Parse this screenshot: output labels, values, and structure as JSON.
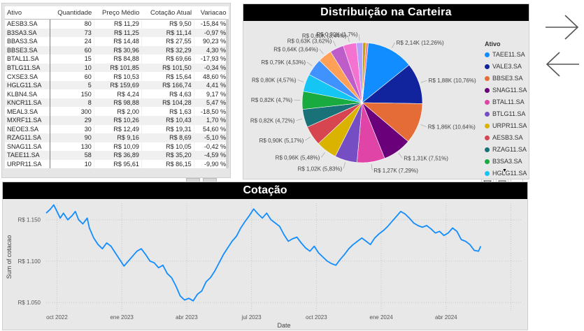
{
  "table": {
    "headers": [
      "Ativo",
      "Quantidade",
      "Preço Médio",
      "Cotação Atual",
      "Variacao"
    ],
    "rows": [
      [
        "AESB3.SA",
        "80",
        "R$ 11,29",
        "R$ 9,50",
        "-15,84 %"
      ],
      [
        "B3SA3.SA",
        "73",
        "R$ 11,25",
        "R$ 11,14",
        "-0,97 %"
      ],
      [
        "BBAS3.SA",
        "24",
        "R$ 14,48",
        "R$ 27,55",
        "90,23 %"
      ],
      [
        "BBSE3.SA",
        "60",
        "R$ 30,96",
        "R$ 32,29",
        "4,30 %"
      ],
      [
        "BTAL11.SA",
        "15",
        "R$ 84,88",
        "R$ 69,66",
        "-17,93 %"
      ],
      [
        "BTLG11.SA",
        "10",
        "R$ 101,85",
        "R$ 101,50",
        "-0,34 %"
      ],
      [
        "CXSE3.SA",
        "60",
        "R$ 10,53",
        "R$ 15,64",
        "48,60 %"
      ],
      [
        "HGLG11.SA",
        "5",
        "R$ 159,69",
        "R$ 166,74",
        "4,41 %"
      ],
      [
        "KLBN4.SA",
        "150",
        "R$ 4,24",
        "R$ 4,63",
        "9,17 %"
      ],
      [
        "KNCR11.SA",
        "8",
        "R$ 98,88",
        "R$ 104,28",
        "5,47 %"
      ],
      [
        "MEAL3.SA",
        "300",
        "R$ 2,00",
        "R$ 1,63",
        "-18,50 %"
      ],
      [
        "MXRF11.SA",
        "29",
        "R$ 10,26",
        "R$ 10,43",
        "1,70 %"
      ],
      [
        "NEOE3.SA",
        "30",
        "R$ 12,49",
        "R$ 19,31",
        "54,60 %"
      ],
      [
        "RZAG11.SA",
        "90",
        "R$ 9,16",
        "R$ 8,69",
        "-5,10 %"
      ],
      [
        "SNAG11.SA",
        "130",
        "R$ 10,09",
        "R$ 10,05",
        "-0,42 %"
      ],
      [
        "TAEE11.SA",
        "58",
        "R$ 36,89",
        "R$ 35,20",
        "-4,59 %"
      ],
      [
        "URPR11.SA",
        "10",
        "R$ 95,61",
        "R$ 86,15",
        "-9,90 %"
      ]
    ]
  },
  "pie": {
    "title": "Distribuição na Carteira",
    "legend_title": "Ativo",
    "legend_more": "▼",
    "chart_data": {
      "type": "pie",
      "slices": [
        {
          "name": "TAEE11.SA",
          "label": "R$ 2,14K (12,26%)",
          "pct": 12.26,
          "color": "#118DFF"
        },
        {
          "name": "VALE3.SA",
          "label": "R$ 1,88K (10,76%)",
          "pct": 10.76,
          "color": "#12239E"
        },
        {
          "name": "BBSE3.SA",
          "label": "R$ 1,86K (10,64%)",
          "pct": 10.64,
          "color": "#E66C37"
        },
        {
          "name": "SNAG11.SA",
          "label": "R$ 1,31K (7,51%)",
          "pct": 7.51,
          "color": "#6B007B"
        },
        {
          "name": "BTAL11.SA",
          "label": "R$ 1,27K (7,29%)",
          "pct": 7.29,
          "color": "#E044A7"
        },
        {
          "name": "BTLG11.SA",
          "label": "R$ 1,02K (5,83%)",
          "pct": 5.83,
          "color": "#744EC2"
        },
        {
          "name": "URPR11.SA",
          "label": "R$ 0,96K (5,48%)",
          "pct": 5.48,
          "color": "#D9B300"
        },
        {
          "name": "AESB3.SA",
          "label": "R$ 0,90K (5,17%)",
          "pct": 5.17,
          "color": "#D64550"
        },
        {
          "name": "RZAG11.SA",
          "label": "R$ 0,82K (4,72%)",
          "pct": 4.72,
          "color": "#197278"
        },
        {
          "name": "B3SA3.SA",
          "label": "R$ 0,82K (4,7%)",
          "pct": 4.7,
          "color": "#1AAB40"
        },
        {
          "name": "HGLG11.SA",
          "label": "R$ 0,80K (4,57%)",
          "pct": 4.57,
          "color": "#15C6F4"
        },
        {
          "name": "",
          "label": "R$ 0,79K (4,53%)",
          "pct": 4.53,
          "color": "#4092FF"
        },
        {
          "name": "",
          "label": "R$ 0,64K (3,64%)",
          "pct": 3.64,
          "color": "#FFA058"
        },
        {
          "name": "",
          "label": "R$ 0,63K (3,62%)",
          "pct": 3.62,
          "color": "#BE5DC9"
        },
        {
          "name": "",
          "label": "R$ 0,60K (3,44%)",
          "pct": 3.44,
          "color": "#F472D0"
        },
        {
          "name": "",
          "label": "R$ 0,30K (1,7%)",
          "pct": 1.7,
          "color": "#B5A1FF"
        },
        {
          "name": "",
          "label": "",
          "pct": 0.8,
          "color": "#C4A200"
        },
        {
          "name": "",
          "label": "",
          "pct": 0.6,
          "color": "#FF8080"
        }
      ]
    }
  },
  "line": {
    "title": "Cotação",
    "chart_data": {
      "type": "line",
      "xlabel": "Date",
      "ylabel": "Sum of cotacao",
      "ylim": [
        1.04,
        1.17
      ],
      "y_ticks": [
        1.05,
        1.1,
        1.15
      ],
      "y_tick_labels": [
        "R$ 1.050",
        "R$ 1.100",
        "R$ 1.150"
      ],
      "x_range": [
        0,
        22
      ],
      "x_ticks": [
        0.5,
        3.5,
        6.5,
        9.5,
        12.5,
        15.5,
        18.5,
        21.5
      ],
      "x_tick_labels": [
        "oct 2022",
        "ene 2023",
        "abr 2023",
        "jul 2023",
        "oct 2023",
        "ene 2024",
        "abr 2024",
        ""
      ],
      "x_tick_visible": [
        "oct 2022",
        "ene 2023",
        "abr 2023",
        "jul 2023",
        "oct 2023",
        "ene 2024",
        "abr 2024"
      ],
      "series": [
        {
          "name": "cotacao",
          "color": "#118DFF",
          "points": [
            [
              0.0,
              1.158
            ],
            [
              0.2,
              1.163
            ],
            [
              0.35,
              1.168
            ],
            [
              0.5,
              1.16
            ],
            [
              0.65,
              1.152
            ],
            [
              0.8,
              1.158
            ],
            [
              1.0,
              1.15
            ],
            [
              1.2,
              1.155
            ],
            [
              1.35,
              1.16
            ],
            [
              1.5,
              1.15
            ],
            [
              1.7,
              1.145
            ],
            [
              1.9,
              1.152
            ],
            [
              2.0,
              1.14
            ],
            [
              2.2,
              1.128
            ],
            [
              2.4,
              1.12
            ],
            [
              2.6,
              1.115
            ],
            [
              2.8,
              1.122
            ],
            [
              3.0,
              1.118
            ],
            [
              3.2,
              1.11
            ],
            [
              3.4,
              1.102
            ],
            [
              3.6,
              1.094
            ],
            [
              3.8,
              1.1
            ],
            [
              4.0,
              1.106
            ],
            [
              4.2,
              1.112
            ],
            [
              4.4,
              1.115
            ],
            [
              4.6,
              1.108
            ],
            [
              4.8,
              1.1
            ],
            [
              5.0,
              1.098
            ],
            [
              5.2,
              1.092
            ],
            [
              5.4,
              1.095
            ],
            [
              5.6,
              1.085
            ],
            [
              5.8,
              1.08
            ],
            [
              6.0,
              1.07
            ],
            [
              6.2,
              1.058
            ],
            [
              6.4,
              1.053
            ],
            [
              6.6,
              1.055
            ],
            [
              6.8,
              1.052
            ],
            [
              7.0,
              1.06
            ],
            [
              7.2,
              1.064
            ],
            [
              7.4,
              1.075
            ],
            [
              7.6,
              1.08
            ],
            [
              7.8,
              1.088
            ],
            [
              8.0,
              1.098
            ],
            [
              8.2,
              1.108
            ],
            [
              8.4,
              1.116
            ],
            [
              8.6,
              1.124
            ],
            [
              8.8,
              1.13
            ],
            [
              9.0,
              1.14
            ],
            [
              9.2,
              1.148
            ],
            [
              9.4,
              1.155
            ],
            [
              9.6,
              1.163
            ],
            [
              9.8,
              1.157
            ],
            [
              10.0,
              1.152
            ],
            [
              10.2,
              1.158
            ],
            [
              10.4,
              1.15
            ],
            [
              10.6,
              1.146
            ],
            [
              10.8,
              1.142
            ],
            [
              11.0,
              1.132
            ],
            [
              11.2,
              1.124
            ],
            [
              11.4,
              1.127
            ],
            [
              11.6,
              1.129
            ],
            [
              11.8,
              1.122
            ],
            [
              12.0,
              1.116
            ],
            [
              12.2,
              1.112
            ],
            [
              12.4,
              1.118
            ],
            [
              12.6,
              1.11
            ],
            [
              12.8,
              1.105
            ],
            [
              13.0,
              1.1
            ],
            [
              13.2,
              1.097
            ],
            [
              13.4,
              1.095
            ],
            [
              13.6,
              1.102
            ],
            [
              13.8,
              1.108
            ],
            [
              14.0,
              1.115
            ],
            [
              14.2,
              1.12
            ],
            [
              14.4,
              1.124
            ],
            [
              14.6,
              1.128
            ],
            [
              14.8,
              1.124
            ],
            [
              15.0,
              1.12
            ],
            [
              15.2,
              1.128
            ],
            [
              15.4,
              1.133
            ],
            [
              15.6,
              1.137
            ],
            [
              15.8,
              1.142
            ],
            [
              16.0,
              1.148
            ],
            [
              16.2,
              1.154
            ],
            [
              16.4,
              1.16
            ],
            [
              16.6,
              1.157
            ],
            [
              16.8,
              1.152
            ],
            [
              17.0,
              1.146
            ],
            [
              17.2,
              1.143
            ],
            [
              17.4,
              1.141
            ],
            [
              17.6,
              1.143
            ],
            [
              17.8,
              1.139
            ],
            [
              18.0,
              1.134
            ],
            [
              18.2,
              1.136
            ],
            [
              18.4,
              1.131
            ],
            [
              18.6,
              1.134
            ],
            [
              18.8,
              1.14
            ],
            [
              19.0,
              1.136
            ],
            [
              19.2,
              1.126
            ],
            [
              19.4,
              1.124
            ],
            [
              19.6,
              1.12
            ],
            [
              19.8,
              1.113
            ],
            [
              20.0,
              1.112
            ],
            [
              20.1,
              1.118
            ]
          ]
        }
      ]
    }
  },
  "icons": {
    "filter": "filter-icon",
    "focus": "focus-mode-icon",
    "more": "⋯",
    "next": "arrow-right-icon",
    "back": "arrow-left-icon"
  }
}
